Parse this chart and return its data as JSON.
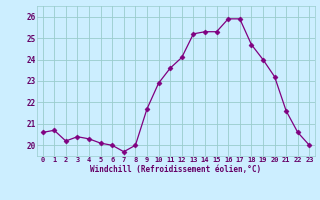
{
  "x": [
    0,
    1,
    2,
    3,
    4,
    5,
    6,
    7,
    8,
    9,
    10,
    11,
    12,
    13,
    14,
    15,
    16,
    17,
    18,
    19,
    20,
    21,
    22,
    23
  ],
  "y": [
    20.6,
    20.7,
    20.2,
    20.4,
    20.3,
    20.1,
    20.0,
    19.7,
    20.0,
    21.7,
    22.9,
    23.6,
    24.1,
    25.2,
    25.3,
    25.3,
    25.9,
    25.9,
    24.7,
    24.0,
    23.2,
    21.6,
    20.6,
    20.0
  ],
  "line_color": "#800080",
  "marker": "D",
  "marker_size": 2.5,
  "bg_color": "#cceeff",
  "grid_color": "#99cccc",
  "xlabel": "Windchill (Refroidissement éolien,°C)",
  "ytick_labels": [
    "20",
    "21",
    "22",
    "23",
    "24",
    "25",
    "26"
  ],
  "ytick_vals": [
    20,
    21,
    22,
    23,
    24,
    25,
    26
  ],
  "xlim": [
    -0.5,
    23.5
  ],
  "ylim": [
    19.5,
    26.5
  ],
  "tick_color": "#660066",
  "xlabel_color": "#660066"
}
